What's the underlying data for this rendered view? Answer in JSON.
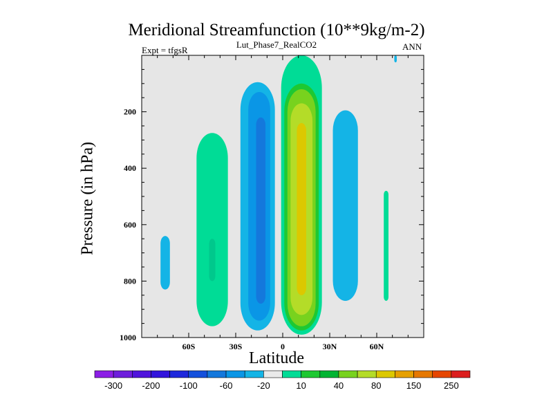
{
  "chart_data": {
    "type": "contour",
    "title": "Meridional Streamfunction (10**9kg/m-2)",
    "left_annotation": "Expt = tfgsR",
    "subtitle": "Lut_Phase7_RealCO2",
    "right_annotation": "ANN",
    "xlabel": "Latitude",
    "ylabel": "Pressure (in hPa)",
    "xlim": [
      -90,
      90
    ],
    "ylim": [
      1000,
      0
    ],
    "xticks": [
      {
        "value": -60,
        "label": "60S"
      },
      {
        "value": -30,
        "label": "30S"
      },
      {
        "value": 0,
        "label": "0"
      },
      {
        "value": 30,
        "label": "30N"
      },
      {
        "value": 60,
        "label": "60N"
      }
    ],
    "yticks": [
      {
        "value": 200,
        "label": "200"
      },
      {
        "value": 400,
        "label": "400"
      },
      {
        "value": 600,
        "label": "600"
      },
      {
        "value": 800,
        "label": "800"
      },
      {
        "value": 1000,
        "label": "1000"
      }
    ],
    "regions": [
      {
        "name": "SH polar cell",
        "level": -20,
        "color": "#14b4e6",
        "lat": -75,
        "halfwidth": 3,
        "ptop": 640,
        "pbot": 830
      },
      {
        "name": "SH Ferrel cell",
        "level": 10,
        "color": "#00dc96",
        "lat": -45,
        "halfwidth": 10,
        "ptop": 275,
        "pbot": 960
      },
      {
        "name": "SH Ferrel core",
        "level": 20,
        "color": "#00c88c",
        "lat": -45,
        "halfwidth": 2,
        "ptop": 650,
        "pbot": 800
      },
      {
        "name": "SH Hadley outer",
        "level": -20,
        "color": "#14b4e6",
        "lat": -16,
        "halfwidth": 11,
        "ptop": 95,
        "pbot": 975
      },
      {
        "name": "SH Hadley mid",
        "level": -40,
        "color": "#0a96e6",
        "lat": -15,
        "halfwidth": 7,
        "ptop": 130,
        "pbot": 940
      },
      {
        "name": "SH Hadley core",
        "level": -60,
        "color": "#1478dc",
        "lat": -14,
        "halfwidth": 3,
        "ptop": 220,
        "pbot": 880
      },
      {
        "name": "NH Hadley outer",
        "level": 10,
        "color": "#00dc96",
        "lat": 12,
        "halfwidth": 13,
        "ptop": 0,
        "pbot": 990
      },
      {
        "name": "NH Hadley 20",
        "level": 20,
        "color": "#1ec832",
        "lat": 12,
        "halfwidth": 11,
        "ptop": 100,
        "pbot": 975
      },
      {
        "name": "NH Hadley 40",
        "level": 40,
        "color": "#78d21e",
        "lat": 12,
        "halfwidth": 9,
        "ptop": 120,
        "pbot": 960
      },
      {
        "name": "NH Hadley 60",
        "level": 60,
        "color": "#b4dc28",
        "lat": 12,
        "halfwidth": 7,
        "ptop": 170,
        "pbot": 920
      },
      {
        "name": "NH Hadley core",
        "level": 80,
        "color": "#dcc800",
        "lat": 12,
        "halfwidth": 3,
        "ptop": 240,
        "pbot": 850
      },
      {
        "name": "NH Ferrel cell",
        "level": -20,
        "color": "#14b4e6",
        "lat": 40,
        "halfwidth": 8,
        "ptop": 195,
        "pbot": 870
      },
      {
        "name": "NH polar cell",
        "level": 10,
        "color": "#00dc96",
        "lat": 66,
        "halfwidth": 1.5,
        "ptop": 480,
        "pbot": 870
      },
      {
        "name": "NH top patch",
        "level": -20,
        "color": "#14b4e6",
        "lat": 72,
        "halfwidth": 0.8,
        "ptop": 0,
        "pbot": 25
      }
    ],
    "colorbar": {
      "colors": [
        "#8c1ee6",
        "#6e1edc",
        "#5014dc",
        "#3214dc",
        "#1e28dc",
        "#1450dc",
        "#1478dc",
        "#0a96e6",
        "#14b4e6",
        "#eaeaea",
        "#00dc96",
        "#1ec832",
        "#00b432",
        "#78d21e",
        "#b4dc28",
        "#dcc800",
        "#e6a000",
        "#e67800",
        "#e64600",
        "#dc1e1e"
      ],
      "labels": [
        "-300",
        "-200",
        "-100",
        "-60",
        "-20",
        "10",
        "40",
        "80",
        "150",
        "250"
      ]
    },
    "background_color": "#e6e6e6"
  }
}
